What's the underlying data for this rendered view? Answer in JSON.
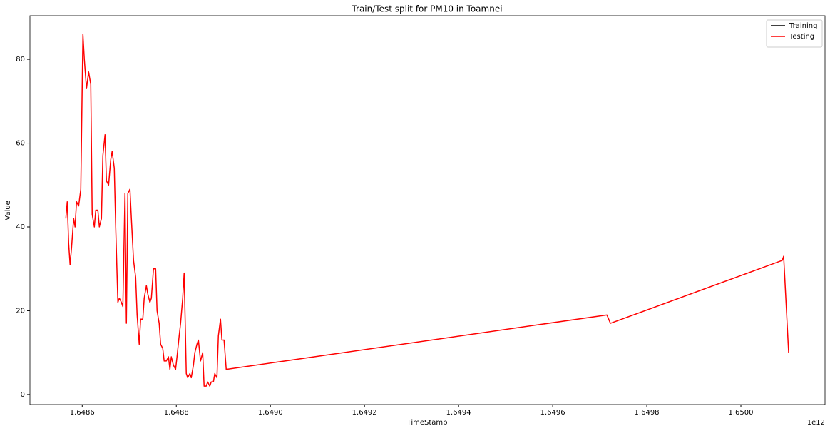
{
  "chart_data": {
    "type": "line",
    "title": "Train/Test split for PM10 in Toamnei",
    "x_label": "TimeStamp",
    "y_label": "Value",
    "x_offset_label": "1e12",
    "xlim": [
      1.64848894,
      1.6501788
    ],
    "ylim": [
      -2.4,
      90.4
    ],
    "xticks": [
      1.6486,
      1.6488,
      {
        "value": 1.649,
        "label": "1.6490"
      },
      1.6492,
      1.6494,
      1.6496,
      1.6498,
      {
        "value": 1.65,
        "label": "1.6500"
      }
    ],
    "yticks": [
      0,
      20,
      40,
      60,
      80
    ],
    "grid": false,
    "legend": "upper right",
    "series": [
      {
        "name": "Training",
        "color": "#000000",
        "x": [],
        "values": []
      },
      {
        "name": "Testing",
        "color": "#ff0000",
        "x": [
          1.6485652,
          1.6485682,
          1.6485712,
          1.6485742,
          1.6485773,
          1.6485818,
          1.6485848,
          1.6485879,
          1.6485924,
          1.648597,
          1.6486015,
          1.6486045,
          1.6486091,
          1.6486136,
          1.6486182,
          1.6486212,
          1.6486258,
          1.6486288,
          1.6486333,
          1.6486364,
          1.6486409,
          1.6486439,
          1.6486485,
          1.6486515,
          1.6486561,
          1.6486606,
          1.6486636,
          1.6486682,
          1.6486712,
          1.6486758,
          1.6486788,
          1.6486833,
          1.6486864,
          1.6486909,
          1.6486939,
          1.648697,
          1.6487015,
          1.6487045,
          1.6487091,
          1.6487136,
          1.6487167,
          1.6487212,
          1.6487242,
          1.6487288,
          1.6487318,
          1.6487364,
          1.6487394,
          1.6487439,
          1.648747,
          1.6487515,
          1.6487561,
          1.6487591,
          1.6487636,
          1.6487667,
          1.6487712,
          1.6487742,
          1.6487788,
          1.6487833,
          1.6487864,
          1.6487894,
          1.6487939,
          1.6487985,
          1.6488015,
          1.6488061,
          1.6488091,
          1.6488136,
          1.6488167,
          1.6488212,
          1.6488242,
          1.6488288,
          1.6488318,
          1.6488364,
          1.6488394,
          1.6488439,
          1.648847,
          1.6488515,
          1.6488561,
          1.6488591,
          1.6488636,
          1.6488667,
          1.6488712,
          1.6488742,
          1.6488788,
          1.6488818,
          1.6488864,
          1.6488894,
          1.6488939,
          1.648897,
          1.6489015,
          1.6489061,
          1.6497152,
          1.6497227,
          1.6500879,
          1.6500909,
          1.6501015
        ],
        "values": [
          42,
          46,
          36,
          31,
          35,
          42,
          40,
          46,
          45,
          49,
          86,
          80,
          73,
          77,
          74,
          43,
          40,
          44,
          44,
          40,
          42,
          57,
          62,
          51,
          50,
          56,
          58,
          54,
          40,
          22,
          23,
          22,
          21,
          48,
          17,
          48,
          49,
          42,
          32,
          28,
          19,
          12,
          18,
          18,
          23,
          26,
          24,
          22,
          23,
          30,
          30,
          20,
          17,
          12,
          11,
          8,
          8,
          9,
          6,
          9,
          7,
          6,
          9,
          14,
          17,
          23,
          29,
          5,
          4,
          5,
          4,
          7,
          10,
          12,
          13,
          8,
          10,
          2,
          2,
          3,
          2,
          3,
          3,
          5,
          4,
          14,
          18,
          13,
          13,
          6,
          19,
          17,
          32,
          33,
          10
        ]
      }
    ]
  }
}
